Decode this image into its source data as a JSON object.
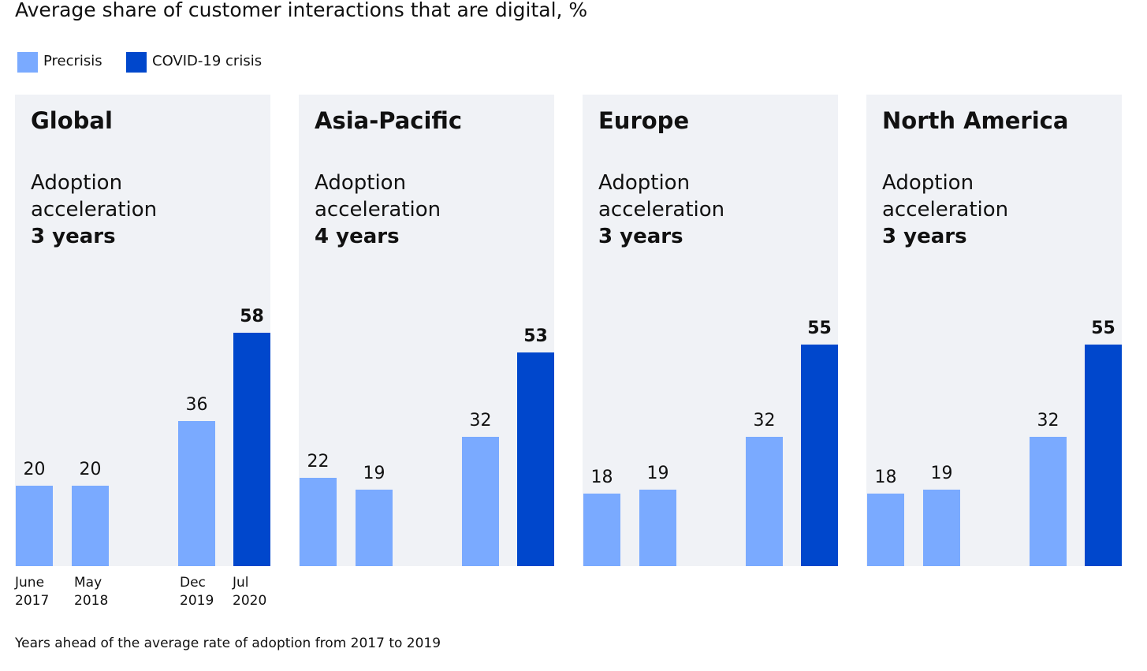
{
  "title": "Average share of customer interactions that are digital, %",
  "legend": [
    {
      "label": "Precrisis",
      "color": "#7aaaff"
    },
    {
      "label": "COVID-19 crisis",
      "color": "#0047cc"
    }
  ],
  "note": "Years ahead of the average rate of adoption from 2017 to 2019",
  "chart_data": {
    "type": "bar",
    "title": "Average share of customer interactions that are digital, %",
    "categories": [
      {
        "line1": "June",
        "line2": "2017"
      },
      {
        "line1": "May",
        "line2": "2018"
      },
      {
        "line1": "Dec",
        "line2": "2019"
      },
      {
        "line1": "Jul",
        "line2": "2020"
      }
    ],
    "panels": [
      {
        "name": "Global",
        "adoption_label": [
          "Adoption",
          "acceleration"
        ],
        "years": "3 years",
        "values": [
          20,
          20,
          36,
          58
        ]
      },
      {
        "name": "Asia-Pacific",
        "adoption_label": [
          "Adoption",
          "acceleration"
        ],
        "years": "4 years",
        "values": [
          22,
          19,
          32,
          53
        ]
      },
      {
        "name": "Europe",
        "adoption_label": [
          "Adoption",
          "acceleration"
        ],
        "years": "3 years",
        "values": [
          18,
          19,
          32,
          55
        ]
      },
      {
        "name": "North America",
        "adoption_label": [
          "Adoption",
          "acceleration"
        ],
        "years": "3 years",
        "values": [
          18,
          19,
          32,
          55
        ]
      }
    ],
    "series": [
      {
        "name": "Precrisis",
        "category_indices": [
          0,
          1,
          2
        ]
      },
      {
        "name": "COVID-19 crisis",
        "category_indices": [
          3
        ]
      }
    ],
    "colors": {
      "precrisis": "#7aaaff",
      "covid": "#0047cc",
      "panel_bg": "#f0f2f6"
    }
  }
}
